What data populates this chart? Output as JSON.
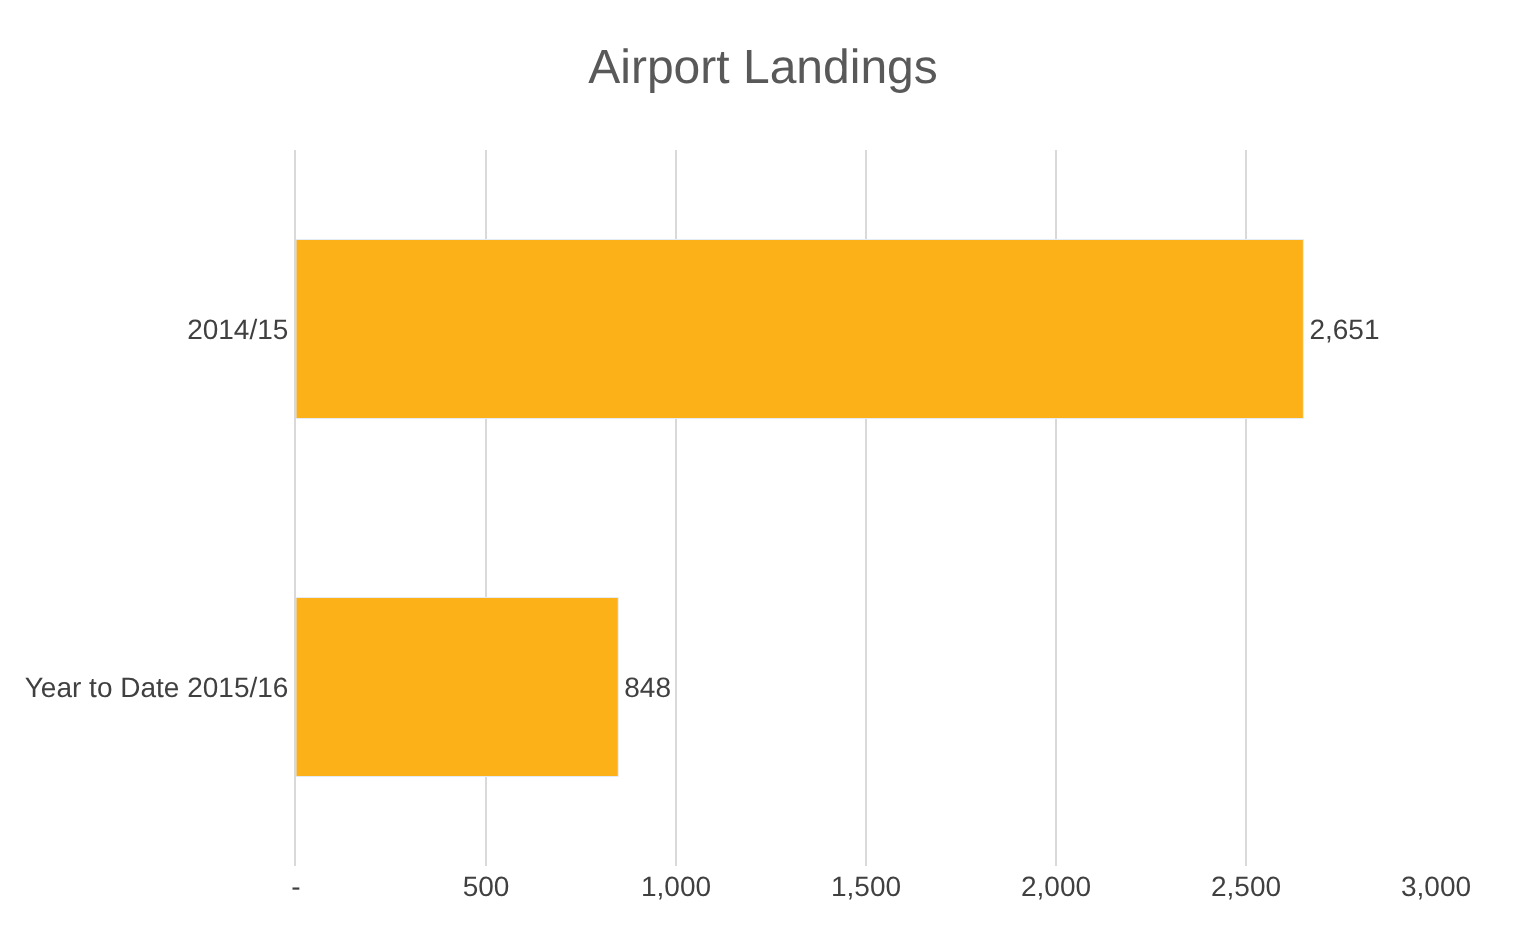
{
  "chart_data": {
    "type": "bar",
    "orientation": "horizontal",
    "title": "Airport Landings",
    "categories": [
      "2014/15",
      "Year to Date 2015/16"
    ],
    "values": [
      2651,
      848
    ],
    "color": "#fbb117",
    "value_labels": [
      "2,651",
      "848"
    ],
    "xlim": [
      0,
      3000
    ],
    "xticks": [
      {
        "value": 0,
        "label": "-"
      },
      500,
      {
        "value": 1000,
        "label": "1,000"
      },
      {
        "value": 1500,
        "label": "1,500"
      },
      {
        "value": 2000,
        "label": "2,000"
      },
      {
        "value": 2500,
        "label": "2,500"
      },
      {
        "value": 3000,
        "label": "3,000"
      }
    ],
    "grid": "x",
    "legend": false
  }
}
